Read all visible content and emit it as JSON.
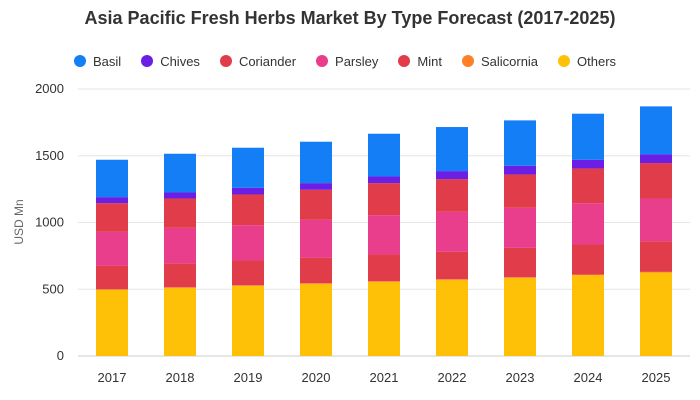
{
  "chart_data": {
    "type": "bar",
    "stacked": true,
    "title": "Asia Pacific Fresh Herbs Market By Type Forecast (2017-2025)",
    "ylabel": "USD Mn",
    "xlabel": "",
    "ylim": [
      0,
      2000
    ],
    "yticks": [
      0,
      500,
      1000,
      1500,
      2000
    ],
    "grid": true,
    "legend_position": "top",
    "categories": [
      "2017",
      "2018",
      "2019",
      "2020",
      "2021",
      "2022",
      "2023",
      "2024",
      "2025"
    ],
    "series": [
      {
        "name": "Others",
        "color": "#FFC107",
        "values": [
          495,
          510,
          525,
          540,
          555,
          570,
          585,
          605,
          625
        ]
      },
      {
        "name": "Salicornia",
        "color": "#FF7F27",
        "values": [
          5,
          5,
          5,
          5,
          5,
          5,
          5,
          5,
          5
        ]
      },
      {
        "name": "Mint",
        "color": "#E03C4A",
        "values": [
          175,
          180,
          185,
          190,
          200,
          205,
          220,
          225,
          230
        ]
      },
      {
        "name": "Parsley",
        "color": "#E83E8C",
        "values": [
          255,
          265,
          265,
          285,
          295,
          300,
          300,
          310,
          320
        ]
      },
      {
        "name": "Coriander",
        "color": "#E03C4A",
        "values": [
          215,
          220,
          230,
          225,
          240,
          245,
          250,
          260,
          265
        ]
      },
      {
        "name": "Chives",
        "color": "#6B1FE5",
        "values": [
          45,
          45,
          50,
          50,
          50,
          60,
          65,
          65,
          65
        ]
      },
      {
        "name": "Basil",
        "color": "#137EF5",
        "values": [
          280,
          290,
          300,
          310,
          320,
          330,
          340,
          345,
          360
        ]
      }
    ],
    "legend_order": [
      "Basil",
      "Chives",
      "Coriander",
      "Parsley",
      "Mint",
      "Salicornia",
      "Others"
    ]
  }
}
